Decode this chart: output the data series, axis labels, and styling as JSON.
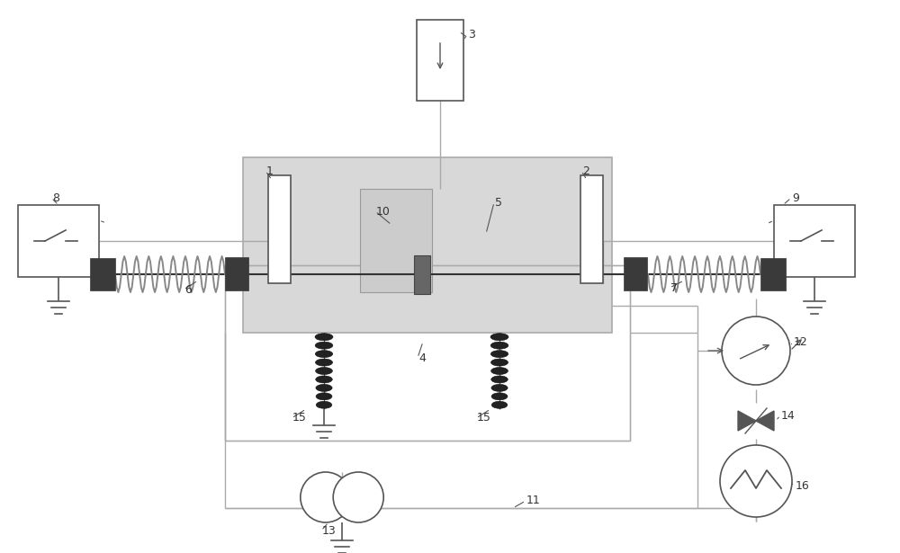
{
  "bg_color": "#ffffff",
  "lc": "#aaaaaa",
  "dc": "#555555",
  "gc": "#888888",
  "comp_dark": "#3a3a3a",
  "tank_fill": "#dddddd",
  "label_color": "#333333"
}
